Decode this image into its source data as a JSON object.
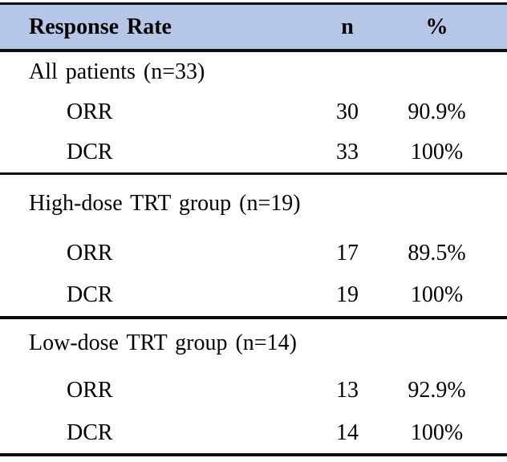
{
  "table": {
    "title": "Response Rate",
    "header": {
      "col1": "Response Rate",
      "col2": "n",
      "col3": "%"
    },
    "sections": [
      {
        "title": "All patients (n=33)",
        "rows": [
          {
            "label": "ORR",
            "n": "30",
            "pct": "90.9%"
          },
          {
            "label": "DCR",
            "n": "33",
            "pct": "100%"
          }
        ]
      },
      {
        "title": "High-dose TRT group (n=19)",
        "rows": [
          {
            "label": "ORR",
            "n": "17",
            "pct": "89.5%"
          },
          {
            "label": "DCR",
            "n": "19",
            "pct": "100%"
          }
        ]
      },
      {
        "title": "Low-dose TRT group (n=14)",
        "rows": [
          {
            "label": "ORR",
            "n": "13",
            "pct": "92.9%"
          },
          {
            "label": "DCR",
            "n": "14",
            "pct": "100%"
          }
        ]
      }
    ],
    "colors": {
      "header_background": "#b4c7e7",
      "rule": "#0d0d0d",
      "text": "#000000"
    }
  },
  "chart_data": {
    "type": "table",
    "title": "Response Rate",
    "columns": [
      "Response Rate",
      "n",
      "%"
    ],
    "rows": [
      [
        "All patients (n=33)",
        "",
        ""
      ],
      [
        "ORR",
        "30",
        "90.9%"
      ],
      [
        "DCR",
        "33",
        "100%"
      ],
      [
        "High-dose TRT group (n=19)",
        "",
        ""
      ],
      [
        "ORR",
        "17",
        "89.5%"
      ],
      [
        "DCR",
        "19",
        "100%"
      ],
      [
        "Low-dose TRT group (n=14)",
        "",
        ""
      ],
      [
        "ORR",
        "13",
        "92.9%"
      ],
      [
        "DCR",
        "14",
        "100%"
      ]
    ]
  }
}
